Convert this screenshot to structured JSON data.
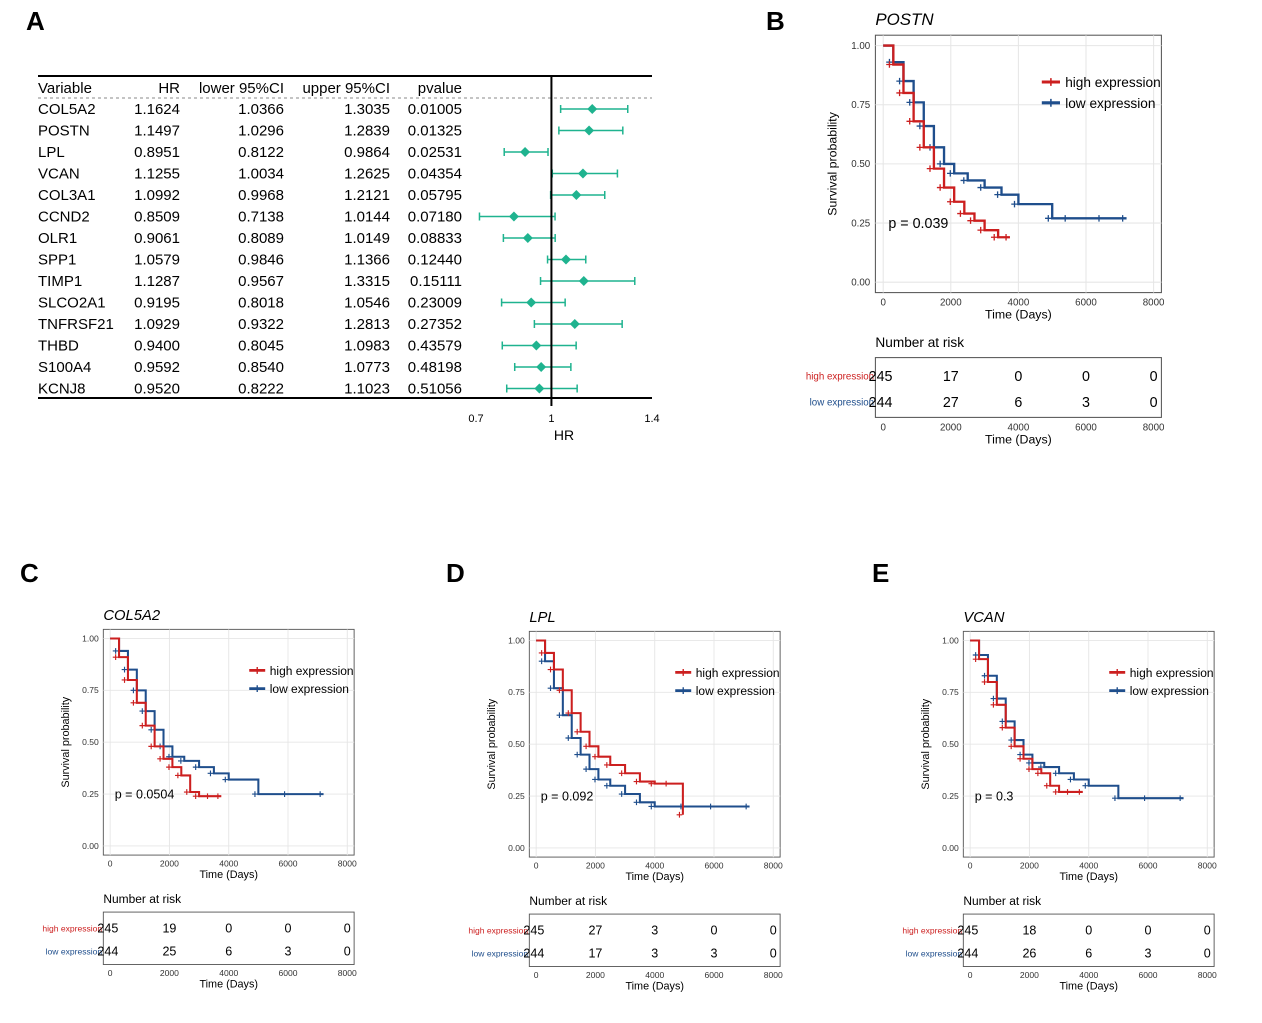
{
  "colors": {
    "high": "#cc1f1f",
    "low": "#1f4e8c",
    "forest": "#1fb38f",
    "grid": "#e6e6e6"
  },
  "panel_labels": {
    "A": "A",
    "B": "B",
    "C": "C",
    "D": "D",
    "E": "E"
  },
  "forest": {
    "headers": {
      "variable": "Variable",
      "hr": "HR",
      "lower": "lower 95%CI",
      "upper": "upper 95%CI",
      "pvalue": "pvalue"
    },
    "axis_label": "HR",
    "axis_ticks": [
      "0.7",
      "1",
      "1.4"
    ],
    "rows": [
      {
        "variable": "COL5A2",
        "hr": "1.1624",
        "lower": "1.0366",
        "upper": "1.3035",
        "pvalue": "0.01005"
      },
      {
        "variable": "POSTN",
        "hr": "1.1497",
        "lower": "1.0296",
        "upper": "1.2839",
        "pvalue": "0.01325"
      },
      {
        "variable": "LPL",
        "hr": "0.8951",
        "lower": "0.8122",
        "upper": "0.9864",
        "pvalue": "0.02531"
      },
      {
        "variable": "VCAN",
        "hr": "1.1255",
        "lower": "1.0034",
        "upper": "1.2625",
        "pvalue": "0.04354"
      },
      {
        "variable": "COL3A1",
        "hr": "1.0992",
        "lower": "0.9968",
        "upper": "1.2121",
        "pvalue": "0.05795"
      },
      {
        "variable": "CCND2",
        "hr": "0.8509",
        "lower": "0.7138",
        "upper": "1.0144",
        "pvalue": "0.07180"
      },
      {
        "variable": "OLR1",
        "hr": "0.9061",
        "lower": "0.8089",
        "upper": "1.0149",
        "pvalue": "0.08833"
      },
      {
        "variable": "SPP1",
        "hr": "1.0579",
        "lower": "0.9846",
        "upper": "1.1366",
        "pvalue": "0.12440"
      },
      {
        "variable": "TIMP1",
        "hr": "1.1287",
        "lower": "0.9567",
        "upper": "1.3315",
        "pvalue": "0.15111"
      },
      {
        "variable": "SLCO2A1",
        "hr": "0.9195",
        "lower": "0.8018",
        "upper": "1.0546",
        "pvalue": "0.23009"
      },
      {
        "variable": "TNFRSF21",
        "hr": "1.0929",
        "lower": "0.9322",
        "upper": "1.2813",
        "pvalue": "0.27352"
      },
      {
        "variable": "THBD",
        "hr": "0.9400",
        "lower": "0.8045",
        "upper": "1.0983",
        "pvalue": "0.43579"
      },
      {
        "variable": "S100A4",
        "hr": "0.9592",
        "lower": "0.8540",
        "upper": "1.0773",
        "pvalue": "0.48198"
      },
      {
        "variable": "KCNJ8",
        "hr": "0.9520",
        "lower": "0.8222",
        "upper": "1.1023",
        "pvalue": "0.51056"
      }
    ]
  },
  "km_common": {
    "ylabel": "Survival probability",
    "xlabel": "Time (Days)",
    "y_ticks": [
      "0.00",
      "0.25",
      "0.50",
      "0.75",
      "1.00"
    ],
    "x_ticks": [
      "0",
      "2000",
      "4000",
      "6000",
      "8000"
    ],
    "legend_high": "high expression",
    "legend_low": "low expression",
    "risk_title": "Number at risk"
  },
  "chart_data": [
    {
      "type": "forest",
      "title": "",
      "xlabel": "HR",
      "xlim": [
        0.7,
        1.4
      ],
      "reference_line": 1,
      "categories": [
        "COL5A2",
        "POSTN",
        "LPL",
        "VCAN",
        "COL3A1",
        "CCND2",
        "OLR1",
        "SPP1",
        "TIMP1",
        "SLCO2A1",
        "TNFRSF21",
        "THBD",
        "S100A4",
        "KCNJ8"
      ],
      "hr": [
        1.1624,
        1.1497,
        0.8951,
        1.1255,
        1.0992,
        0.8509,
        0.9061,
        1.0579,
        1.1287,
        0.9195,
        1.0929,
        0.94,
        0.9592,
        0.952
      ],
      "lower": [
        1.0366,
        1.0296,
        0.8122,
        1.0034,
        0.9968,
        0.7138,
        0.8089,
        0.9846,
        0.9567,
        0.8018,
        0.9322,
        0.8045,
        0.854,
        0.8222
      ],
      "upper": [
        1.3035,
        1.2839,
        0.9864,
        1.2625,
        1.2121,
        1.0144,
        1.0149,
        1.1366,
        1.3315,
        1.0546,
        1.2813,
        1.0983,
        1.0773,
        1.1023
      ]
    },
    {
      "type": "line",
      "title": "POSTN",
      "p_value": "p = 0.039",
      "xlim": [
        0,
        8000
      ],
      "ylim": [
        0,
        1
      ],
      "risk_times": [
        0,
        2000,
        4000,
        6000,
        8000
      ],
      "series": [
        {
          "name": "high expression",
          "risk": [
            "245",
            "17",
            "0",
            "0",
            "0"
          ],
          "x": [
            0,
            300,
            600,
            900,
            1200,
            1500,
            1800,
            2100,
            2400,
            2700,
            3000,
            3400,
            3750
          ],
          "y": [
            1.0,
            0.92,
            0.8,
            0.68,
            0.57,
            0.48,
            0.4,
            0.34,
            0.29,
            0.26,
            0.22,
            0.19,
            0.19
          ]
        },
        {
          "name": "low expression",
          "risk": [
            "244",
            "27",
            "6",
            "3",
            "0"
          ],
          "x": [
            0,
            300,
            600,
            900,
            1200,
            1500,
            1800,
            2100,
            2500,
            3000,
            3500,
            4000,
            5000,
            5500,
            6500,
            7200
          ],
          "y": [
            1.0,
            0.93,
            0.85,
            0.76,
            0.66,
            0.57,
            0.5,
            0.46,
            0.43,
            0.4,
            0.37,
            0.33,
            0.27,
            0.27,
            0.27,
            0.27
          ]
        }
      ]
    },
    {
      "type": "line",
      "title": "COL5A2",
      "p_value": "p = 0.0504",
      "xlim": [
        0,
        8000
      ],
      "ylim": [
        0,
        1
      ],
      "risk_times": [
        0,
        2000,
        4000,
        6000,
        8000
      ],
      "series": [
        {
          "name": "high expression",
          "risk": [
            "245",
            "19",
            "0",
            "0",
            "0"
          ],
          "x": [
            0,
            300,
            600,
            900,
            1200,
            1500,
            1800,
            2100,
            2400,
            2700,
            3000,
            3400,
            3750
          ],
          "y": [
            1.0,
            0.91,
            0.8,
            0.69,
            0.58,
            0.48,
            0.42,
            0.38,
            0.34,
            0.26,
            0.24,
            0.24,
            0.24
          ]
        },
        {
          "name": "low expression",
          "risk": [
            "244",
            "25",
            "6",
            "3",
            "0"
          ],
          "x": [
            0,
            300,
            600,
            900,
            1200,
            1500,
            1800,
            2100,
            2500,
            3000,
            3500,
            4000,
            5000,
            6000,
            7200
          ],
          "y": [
            1.0,
            0.94,
            0.85,
            0.75,
            0.65,
            0.56,
            0.48,
            0.43,
            0.41,
            0.38,
            0.35,
            0.32,
            0.25,
            0.25,
            0.25
          ]
        }
      ]
    },
    {
      "type": "line",
      "title": "LPL",
      "p_value": "p = 0.092",
      "xlim": [
        0,
        8000
      ],
      "ylim": [
        0,
        1
      ],
      "risk_times": [
        0,
        2000,
        4000,
        6000,
        8000
      ],
      "series": [
        {
          "name": "high expression",
          "risk": [
            "245",
            "27",
            "3",
            "0",
            "0"
          ],
          "x": [
            0,
            300,
            600,
            900,
            1200,
            1500,
            1800,
            2100,
            2500,
            3000,
            3500,
            4000,
            4500,
            4950
          ],
          "y": [
            1.0,
            0.94,
            0.86,
            0.76,
            0.65,
            0.56,
            0.49,
            0.44,
            0.4,
            0.36,
            0.32,
            0.31,
            0.31,
            0.16
          ]
        },
        {
          "name": "low expression",
          "risk": [
            "244",
            "17",
            "3",
            "3",
            "0"
          ],
          "x": [
            0,
            300,
            600,
            900,
            1200,
            1500,
            1800,
            2100,
            2500,
            3000,
            3500,
            4000,
            5000,
            6000,
            7200
          ],
          "y": [
            1.0,
            0.9,
            0.77,
            0.64,
            0.53,
            0.45,
            0.38,
            0.33,
            0.3,
            0.26,
            0.22,
            0.2,
            0.2,
            0.2,
            0.2
          ]
        }
      ]
    },
    {
      "type": "line",
      "title": "VCAN",
      "p_value": "p = 0.3",
      "xlim": [
        0,
        8000
      ],
      "ylim": [
        0,
        1
      ],
      "risk_times": [
        0,
        2000,
        4000,
        6000,
        8000
      ],
      "series": [
        {
          "name": "high expression",
          "risk": [
            "245",
            "18",
            "0",
            "0",
            "0"
          ],
          "x": [
            0,
            300,
            600,
            900,
            1200,
            1500,
            1800,
            2100,
            2400,
            2700,
            3000,
            3400,
            3800
          ],
          "y": [
            1.0,
            0.91,
            0.8,
            0.69,
            0.58,
            0.49,
            0.43,
            0.38,
            0.36,
            0.3,
            0.27,
            0.27,
            0.27
          ]
        },
        {
          "name": "low expression",
          "risk": [
            "244",
            "26",
            "6",
            "3",
            "0"
          ],
          "x": [
            0,
            300,
            600,
            900,
            1200,
            1500,
            1800,
            2100,
            2500,
            3000,
            3500,
            4000,
            5000,
            6000,
            7200
          ],
          "y": [
            1.0,
            0.93,
            0.83,
            0.72,
            0.61,
            0.52,
            0.45,
            0.41,
            0.39,
            0.36,
            0.33,
            0.3,
            0.24,
            0.24,
            0.24
          ]
        }
      ]
    }
  ]
}
